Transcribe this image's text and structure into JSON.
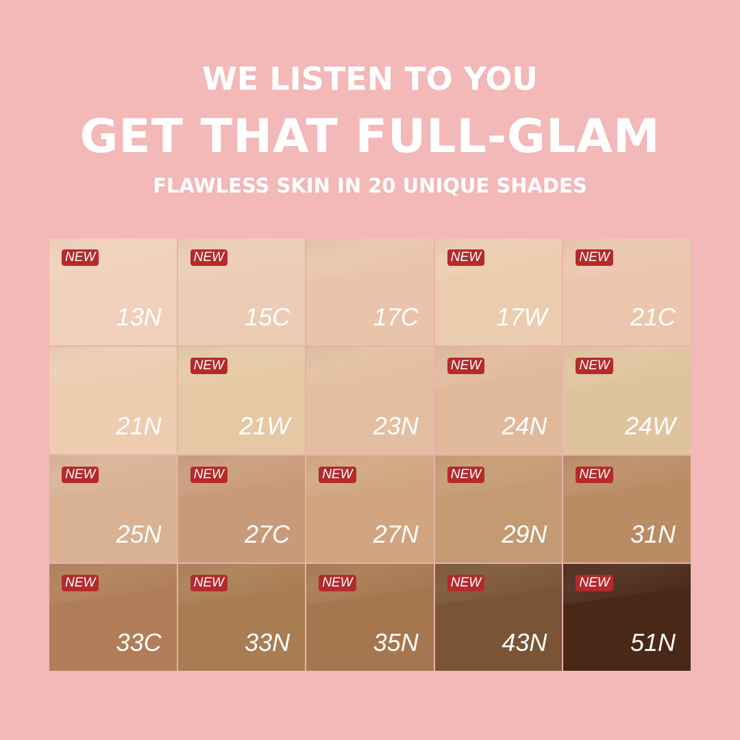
{
  "header": {
    "line1": "WE LISTEN TO YOU",
    "line2": "GET THAT FULL-GLAM",
    "line3": "FLAWLESS SKIN IN 20 UNIQUE SHADES"
  },
  "badge_label": "NEW",
  "shades": [
    {
      "name": "13N",
      "new": true,
      "color": "#f0d0bb"
    },
    {
      "name": "15C",
      "new": true,
      "color": "#ecccb4"
    },
    {
      "name": "17C",
      "new": false,
      "color": "#e9c4aa"
    },
    {
      "name": "17W",
      "new": true,
      "color": "#ecccae"
    },
    {
      "name": "21C",
      "new": true,
      "color": "#ebc6ac"
    },
    {
      "name": "21N",
      "new": false,
      "color": "#edccb0"
    },
    {
      "name": "21W",
      "new": true,
      "color": "#e6c8a4"
    },
    {
      "name": "23N",
      "new": false,
      "color": "#e3bea0"
    },
    {
      "name": "24N",
      "new": true,
      "color": "#e0b99b"
    },
    {
      "name": "24W",
      "new": true,
      "color": "#dfc39d"
    },
    {
      "name": "25N",
      "new": true,
      "color": "#d8b293"
    },
    {
      "name": "27C",
      "new": true,
      "color": "#c99a7a"
    },
    {
      "name": "27N",
      "new": true,
      "color": "#d0a57f"
    },
    {
      "name": "29N",
      "new": true,
      "color": "#c49a72"
    },
    {
      "name": "31N",
      "new": true,
      "color": "#ba8c64"
    },
    {
      "name": "33C",
      "new": true,
      "color": "#b07d58"
    },
    {
      "name": "33N",
      "new": true,
      "color": "#a97c52"
    },
    {
      "name": "35N",
      "new": true,
      "color": "#a6774f"
    },
    {
      "name": "43N",
      "new": true,
      "color": "#7a5435"
    },
    {
      "name": "51N",
      "new": true,
      "color": "#4a2818"
    }
  ]
}
